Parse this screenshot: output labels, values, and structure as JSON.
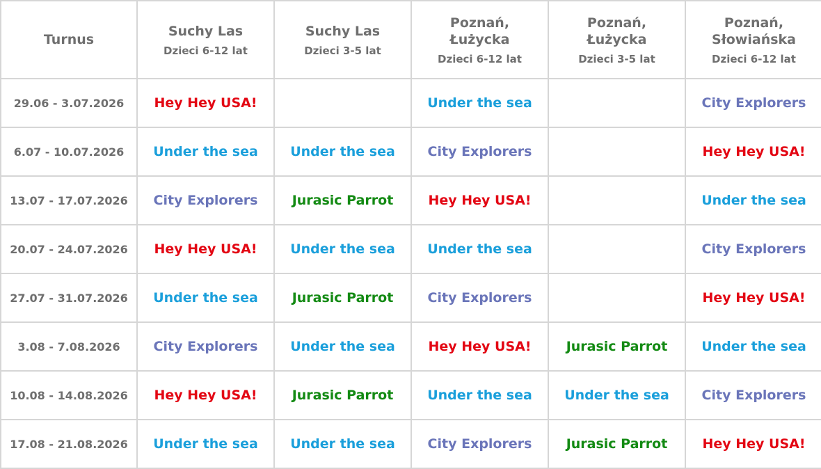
{
  "header": {
    "turnus": "Turnus",
    "locations": [
      {
        "name": "Suchy Las",
        "age": "Dzieci 6-12 lat"
      },
      {
        "name": "Suchy Las",
        "age": "Dzieci 3-5 lat"
      },
      {
        "name": "Poznań,\nŁużycka",
        "age": "Dzieci 6-12 lat"
      },
      {
        "name": "Poznań,\nŁużycka",
        "age": "Dzieci 3-5 lat"
      },
      {
        "name": "Poznań,\nSłowiańska",
        "age": "Dzieci 6-12 lat"
      }
    ]
  },
  "program_colors": {
    "Hey Hey USA!": "#e30613",
    "Under the sea": "#1a9fdb",
    "City Explorers": "#6a75b9",
    "Jurasic Parrot": "#138a13"
  },
  "rows": [
    {
      "dates": "29.06 - 3.07.2026",
      "cells": [
        "Hey Hey USA!",
        "",
        "Under the sea",
        "",
        "City Explorers"
      ]
    },
    {
      "dates": "6.07 - 10.07.2026",
      "cells": [
        "Under the sea",
        "Under the sea",
        "City Explorers",
        "",
        "Hey Hey USA!"
      ]
    },
    {
      "dates": "13.07 - 17.07.2026",
      "cells": [
        "City Explorers",
        "Jurasic Parrot",
        "Hey Hey USA!",
        "",
        "Under the sea"
      ]
    },
    {
      "dates": "20.07 - 24.07.2026",
      "cells": [
        "Hey Hey USA!",
        "Under the sea",
        "Under the sea",
        "",
        "City Explorers"
      ]
    },
    {
      "dates": "27.07 - 31.07.2026",
      "cells": [
        "Under the sea",
        "Jurasic Parrot",
        "City Explorers",
        "",
        "Hey Hey USA!"
      ]
    },
    {
      "dates": "3.08 - 7.08.2026",
      "cells": [
        "City Explorers",
        "Under the sea",
        "Hey Hey USA!",
        "Jurasic Parrot",
        "Under the sea"
      ]
    },
    {
      "dates": "10.08 - 14.08.2026",
      "cells": [
        "Hey Hey USA!",
        "Jurasic Parrot",
        "Under the sea",
        "Under the sea",
        "City Explorers"
      ]
    },
    {
      "dates": "17.08 - 21.08.2026",
      "cells": [
        "Under the sea",
        "Under the sea",
        "City Explorers",
        "Jurasic Parrot",
        "Hey Hey USA!"
      ]
    }
  ]
}
